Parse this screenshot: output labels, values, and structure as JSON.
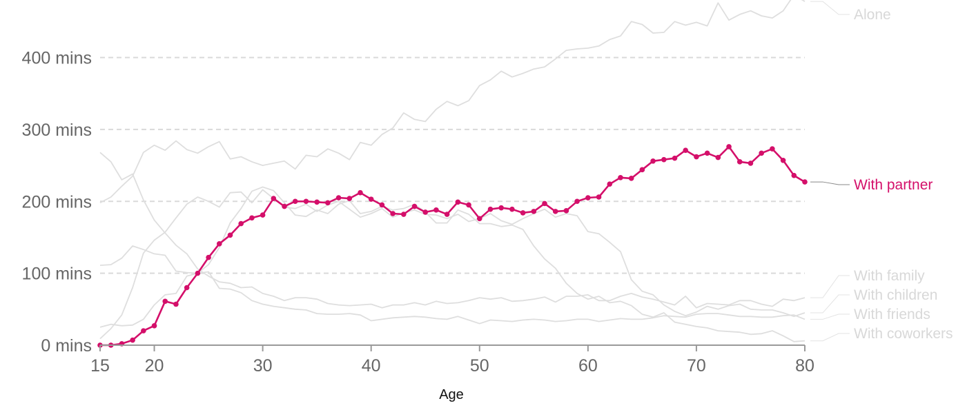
{
  "chart_data": {
    "type": "line",
    "xlabel": "Age",
    "xlim": [
      15,
      80
    ],
    "ylim": [
      0,
      480
    ],
    "x_ticks": [
      15,
      20,
      30,
      40,
      50,
      60,
      70,
      80
    ],
    "y_ticks": [
      {
        "value": 0,
        "label": "0 mins"
      },
      {
        "value": 100,
        "label": "100 mins"
      },
      {
        "value": 200,
        "label": "200 mins"
      },
      {
        "value": 300,
        "label": "300 mins"
      },
      {
        "value": 400,
        "label": "400 mins"
      }
    ],
    "grid": "horizontal dashed",
    "highlighted_series": "With partner",
    "colors": {
      "highlight": "#d40f6a",
      "muted": "#dedede",
      "muted_label": "#d8d8d8",
      "axis": "#999999",
      "grid": "#d9d9d9"
    },
    "x": [
      15,
      16,
      17,
      18,
      19,
      20,
      21,
      22,
      23,
      24,
      25,
      26,
      27,
      28,
      29,
      30,
      31,
      32,
      33,
      34,
      35,
      36,
      37,
      38,
      39,
      40,
      41,
      42,
      43,
      44,
      45,
      46,
      47,
      48,
      49,
      50,
      51,
      52,
      53,
      54,
      55,
      56,
      57,
      58,
      59,
      60,
      61,
      62,
      63,
      64,
      65,
      66,
      67,
      68,
      69,
      70,
      71,
      72,
      73,
      74,
      75,
      76,
      77,
      78,
      79,
      80
    ],
    "series": [
      {
        "name": "Alone",
        "values": [
          198,
          206,
          221,
          235,
          268,
          278,
          271,
          284,
          272,
          267,
          276,
          283,
          259,
          262,
          255,
          250,
          253,
          256,
          245,
          264,
          262,
          273,
          267,
          258,
          282,
          278,
          293,
          302,
          323,
          314,
          311,
          328,
          339,
          333,
          340,
          361,
          369,
          381,
          373,
          378,
          384,
          387,
          398,
          410,
          412,
          413,
          416,
          425,
          430,
          450,
          446,
          434,
          435,
          450,
          445,
          449,
          444,
          476,
          452,
          460,
          465,
          458,
          455,
          465,
          487,
          478
        ]
      },
      {
        "name": "With partner",
        "values": [
          0,
          0,
          2,
          7,
          20,
          27,
          61,
          57,
          80,
          100,
          122,
          141,
          153,
          169,
          177,
          181,
          204,
          193,
          200,
          200,
          199,
          198,
          205,
          204,
          212,
          203,
          195,
          183,
          182,
          193,
          185,
          188,
          182,
          199,
          195,
          176,
          189,
          191,
          189,
          184,
          186,
          197,
          186,
          187,
          200,
          205,
          206,
          224,
          233,
          232,
          244,
          256,
          258,
          260,
          271,
          262,
          267,
          261,
          276,
          255,
          253,
          267,
          273,
          257,
          236,
          227
        ]
      },
      {
        "name": "With family",
        "values": [
          268,
          255,
          230,
          238,
          202,
          174,
          156,
          139,
          127,
          106,
          96,
          88,
          86,
          80,
          81,
          72,
          68,
          62,
          66,
          66,
          64,
          58,
          56,
          55,
          56,
          57,
          52,
          56,
          56,
          59,
          56,
          61,
          58,
          59,
          62,
          66,
          64,
          66,
          61,
          62,
          64,
          67,
          60,
          68,
          68,
          70,
          62,
          62,
          68,
          72,
          67,
          64,
          60,
          56,
          68,
          52,
          58,
          57,
          56,
          62,
          62,
          57,
          54,
          64,
          62,
          66
        ]
      },
      {
        "name": "With children",
        "values": [
          9,
          23,
          42,
          80,
          128,
          146,
          157,
          177,
          196,
          206,
          200,
          192,
          212,
          213,
          198,
          216,
          204,
          192,
          190,
          196,
          186,
          195,
          200,
          189,
          178,
          183,
          190,
          178,
          184,
          188,
          182,
          181,
          176,
          182,
          172,
          176,
          183,
          173,
          168,
          176,
          183,
          189,
          178,
          183,
          180,
          158,
          155,
          143,
          130,
          91,
          75,
          70,
          56,
          47,
          41,
          46,
          54,
          50,
          55,
          57,
          50,
          49,
          49,
          45,
          40,
          45
        ]
      },
      {
        "name": "With friends",
        "values": [
          111,
          112,
          121,
          138,
          133,
          127,
          125,
          103,
          101,
          100,
          102,
          79,
          78,
          73,
          62,
          57,
          54,
          52,
          50,
          49,
          44,
          43,
          43,
          44,
          42,
          34,
          36,
          38,
          39,
          40,
          39,
          37,
          36,
          40,
          35,
          30,
          35,
          34,
          33,
          35,
          36,
          35,
          33,
          34,
          36,
          36,
          33,
          35,
          37,
          36,
          36,
          38,
          41,
          40,
          39,
          43,
          44,
          44,
          42,
          40,
          40,
          39,
          39,
          41,
          42,
          36
        ]
      },
      {
        "name": "With coworkers",
        "values": [
          25,
          29,
          27,
          28,
          36,
          56,
          70,
          72,
          96,
          100,
          112,
          136,
          170,
          190,
          214,
          220,
          215,
          198,
          181,
          179,
          188,
          183,
          196,
          201,
          183,
          186,
          193,
          188,
          190,
          196,
          185,
          170,
          170,
          188,
          182,
          169,
          169,
          165,
          167,
          161,
          138,
          120,
          107,
          86,
          72,
          64,
          68,
          59,
          61,
          55,
          43,
          39,
          45,
          32,
          29,
          26,
          24,
          20,
          19,
          18,
          15,
          16,
          20,
          13,
          5,
          6
        ]
      }
    ]
  }
}
